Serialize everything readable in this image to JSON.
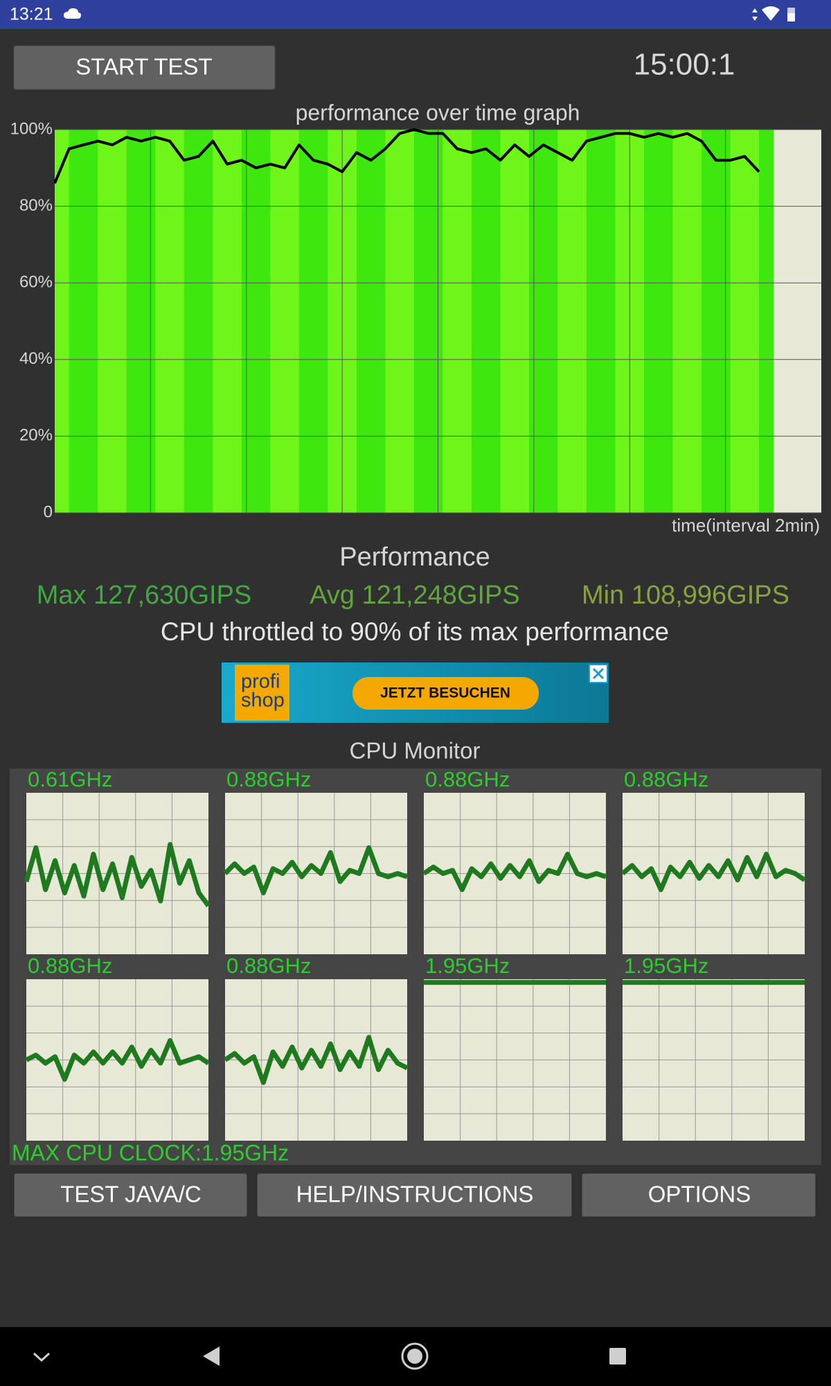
{
  "status_bar": {
    "time": "13:21"
  },
  "header": {
    "start_button": "START TEST",
    "timer": "15:00:1"
  },
  "performance_graph": {
    "type": "line",
    "title": "performance over time graph",
    "x_label": "time(interval 2min)",
    "xlim": [
      0,
      16
    ],
    "xticks": [
      2,
      4,
      6,
      8,
      10,
      12,
      14
    ],
    "ylim": [
      0,
      100
    ],
    "yticks": [
      0,
      {
        "value": 20,
        "label": "20%"
      },
      {
        "value": 40,
        "label": "40%"
      },
      {
        "value": 60,
        "label": "60%"
      },
      {
        "value": 80,
        "label": "80%"
      },
      {
        "value": 100,
        "label": "100%"
      }
    ],
    "grid": true,
    "line_color": "#000000",
    "fill_colors": [
      "#6ef51a",
      "#3ee80e"
    ],
    "x": [
      0,
      0.3,
      0.6,
      0.9,
      1.2,
      1.5,
      1.8,
      2.1,
      2.4,
      2.7,
      3.0,
      3.3,
      3.6,
      3.9,
      4.2,
      4.5,
      4.8,
      5.1,
      5.4,
      5.7,
      6.0,
      6.3,
      6.6,
      6.9,
      7.2,
      7.5,
      7.8,
      8.1,
      8.4,
      8.7,
      9.0,
      9.3,
      9.6,
      9.9,
      10.2,
      10.5,
      10.8,
      11.1,
      11.4,
      11.7,
      12.0,
      12.3,
      12.6,
      12.9,
      13.2,
      13.5,
      13.8,
      14.1,
      14.4,
      14.7
    ],
    "values": [
      86,
      95,
      96,
      97,
      96,
      98,
      97,
      98,
      97,
      92,
      93,
      97,
      91,
      92,
      90,
      91,
      90,
      96,
      92,
      91,
      89,
      94,
      92,
      95,
      99,
      100,
      99,
      99,
      95,
      94,
      95,
      92,
      96,
      93,
      96,
      94,
      92,
      97,
      98,
      99,
      99,
      98,
      99,
      98,
      99,
      97,
      92,
      92,
      93,
      89
    ]
  },
  "performance": {
    "title": "Performance",
    "max": "Max 127,630GIPS",
    "avg": "Avg 121,248GIPS",
    "min": "Min 108,996GIPS",
    "throttle_note": "CPU throttled to 90% of its max performance"
  },
  "ad": {
    "brand_line1": "profi",
    "brand_line2": "shop",
    "cta": "JETZT BESUCHEN"
  },
  "cpu_monitor": {
    "title": "CPU Monitor",
    "ylim": [
      0,
      100
    ],
    "line_color": "#1f7a1f",
    "cores": [
      {
        "clock": "0.61GHz",
        "values": [
          45,
          66,
          40,
          58,
          38,
          55,
          36,
          62,
          40,
          56,
          35,
          60,
          42,
          52,
          33,
          68,
          44,
          58,
          38,
          30
        ]
      },
      {
        "clock": "0.88GHz",
        "values": [
          50,
          56,
          50,
          54,
          38,
          53,
          50,
          57,
          48,
          55,
          50,
          63,
          45,
          52,
          50,
          66,
          50,
          48,
          50,
          48
        ]
      },
      {
        "clock": "0.88GHz",
        "values": [
          50,
          54,
          50,
          52,
          40,
          53,
          48,
          56,
          47,
          55,
          48,
          58,
          45,
          52,
          50,
          62,
          50,
          48,
          50,
          48
        ]
      },
      {
        "clock": "0.88GHz",
        "values": [
          50,
          55,
          48,
          53,
          40,
          54,
          48,
          57,
          47,
          55,
          48,
          58,
          46,
          60,
          48,
          62,
          48,
          52,
          50,
          46
        ]
      },
      {
        "clock": "0.88GHz",
        "values": [
          50,
          53,
          48,
          52,
          38,
          53,
          48,
          55,
          48,
          55,
          48,
          58,
          46,
          56,
          48,
          62,
          48,
          50,
          52,
          48
        ]
      },
      {
        "clock": "0.88GHz",
        "values": [
          50,
          54,
          48,
          52,
          36,
          55,
          46,
          58,
          45,
          56,
          46,
          60,
          44,
          55,
          46,
          64,
          44,
          56,
          48,
          45
        ]
      },
      {
        "clock": "1.95GHz",
        "values": [
          98,
          98,
          98,
          98,
          98,
          98,
          98,
          98,
          98,
          98,
          98,
          98,
          98,
          98,
          98,
          98,
          98,
          98,
          98,
          98
        ]
      },
      {
        "clock": "1.95GHz",
        "values": [
          98,
          98,
          98,
          98,
          98,
          98,
          98,
          98,
          98,
          98,
          98,
          98,
          98,
          98,
          98,
          98,
          98,
          98,
          98,
          98
        ]
      }
    ],
    "max_clock": "MAX CPU CLOCK:1.95GHz"
  },
  "buttons": [
    "TEST JAVA/C",
    "HELP/INSTRUCTIONS",
    "OPTIONS"
  ]
}
